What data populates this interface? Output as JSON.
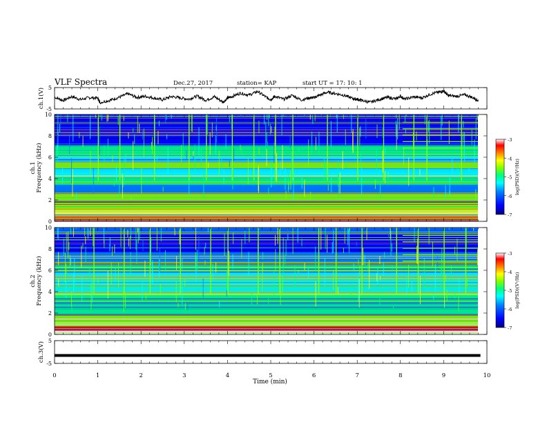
{
  "header": {
    "title": "VLF Spectra",
    "date": "Dec.27, 2017",
    "station": "station= KAP",
    "start": "start  UT =   17: 10: 1"
  },
  "colors": {
    "background": "#ffffff",
    "axes": "#000000",
    "waveform": "#000000",
    "colormap": [
      "#000080",
      "#0000ff",
      "#0080ff",
      "#00ffff",
      "#00ff80",
      "#80ff00",
      "#ffff00",
      "#ff8000",
      "#ff0000",
      "#ffffff"
    ]
  },
  "chart_data": [
    {
      "type": "line",
      "panel": "ch1-waveform",
      "ylabel": "ch.1(V)",
      "yticks": [
        "5",
        "-5"
      ],
      "ylim": [
        -5,
        5
      ],
      "xlim": [
        0,
        10
      ],
      "x": [
        0,
        0.2,
        0.4,
        0.6,
        0.8,
        1.0,
        1.05,
        1.3,
        1.5,
        1.7,
        1.9,
        2.1,
        2.3,
        2.5,
        2.7,
        2.9,
        3.1,
        3.3,
        3.5,
        3.7,
        3.9,
        4.0,
        4.1,
        4.3,
        4.5,
        4.7,
        4.9,
        5.0,
        5.1,
        5.3,
        5.5,
        5.7,
        5.9,
        6.0,
        6.1,
        6.3,
        6.5,
        6.7,
        6.9,
        7.0,
        7.1,
        7.3,
        7.5,
        7.7,
        7.9,
        8.0,
        8.1,
        8.3,
        8.5,
        8.7,
        8.9,
        9.0,
        9.1,
        9.3,
        9.5,
        9.7,
        9.8
      ],
      "y": [
        0.5,
        -1.0,
        0.8,
        -0.6,
        0.3,
        0.1,
        -2.0,
        -0.8,
        0.5,
        2.1,
        0.4,
        0.9,
        0.1,
        -0.7,
        0.8,
        0.2,
        -0.4,
        1.0,
        -0.9,
        0.7,
        -1.8,
        0.1,
        0.8,
        2.4,
        1.5,
        3.2,
        0.4,
        -0.6,
        0.9,
        -0.5,
        1.4,
        -0.8,
        0.2,
        0.3,
        1.2,
        2.8,
        2.2,
        1.4,
        -0.2,
        -0.5,
        -1.0,
        -1.9,
        -0.6,
        0.4,
        -0.3,
        1.0,
        -0.4,
        0.6,
        0.2,
        2.0,
        2.9,
        3.4,
        1.3,
        0.9,
        1.6,
        0.1,
        -1.2
      ]
    },
    {
      "type": "heatmap",
      "panel": "ch1-spectrogram",
      "ylabel": "ch.1\nFrequency (kHz)",
      "yticks": [
        "0",
        "2",
        "4",
        "6",
        "8",
        "10"
      ],
      "ylim": [
        0,
        10
      ],
      "xlim": [
        0,
        10
      ],
      "colorbar": {
        "label": "log(PSD)(V²/Hz)",
        "range": [
          -7,
          -3
        ],
        "ticks": [
          "-3",
          "-4",
          "-5",
          "-6",
          "-7"
        ]
      },
      "bands_khz": [
        {
          "f": 0.2,
          "level": -3.3
        },
        {
          "f": 0.5,
          "level": -3.8
        },
        {
          "f": 0.9,
          "level": -4.3
        },
        {
          "f": 1.2,
          "level": -4.6
        },
        {
          "f": 1.6,
          "level": -4.8
        },
        {
          "f": 2.0,
          "level": -4.7
        },
        {
          "f": 2.4,
          "level": -5.0
        },
        {
          "f": 3.0,
          "level": -6.2
        },
        {
          "f": 3.8,
          "level": -5.4
        },
        {
          "f": 4.6,
          "level": -5.6
        },
        {
          "f": 5.2,
          "level": -5.0
        },
        {
          "f": 5.8,
          "level": -5.6
        },
        {
          "f": 6.6,
          "level": -5.3
        },
        {
          "f": 7.4,
          "level": -6.6
        },
        {
          "f": 8.6,
          "level": -6.7
        },
        {
          "f": 9.6,
          "level": -6.4
        }
      ],
      "transients_min": [
        1.0,
        1.5,
        2.3,
        3.1,
        3.5,
        4.1,
        4.6,
        5.1,
        5.5,
        6.3,
        7.0,
        7.6,
        8.3,
        8.6,
        9.4
      ]
    },
    {
      "type": "heatmap",
      "panel": "ch2-spectrogram",
      "ylabel": "ch.2\nFrequency (kHz)",
      "yticks": [
        "0",
        "2",
        "4",
        "6",
        "8",
        "10"
      ],
      "ylim": [
        0,
        10
      ],
      "xlim": [
        0,
        10
      ],
      "colorbar": {
        "label": "log(PSD)(V²/Hz)",
        "range": [
          -7,
          -3
        ],
        "ticks": [
          "-3",
          "-4",
          "-5",
          "-6",
          "-7"
        ]
      },
      "bands_khz": [
        {
          "f": 0.2,
          "level": -3.2
        },
        {
          "f": 0.5,
          "level": -3.6
        },
        {
          "f": 1.0,
          "level": -4.6
        },
        {
          "f": 1.5,
          "level": -4.9
        },
        {
          "f": 2.1,
          "level": -5.1
        },
        {
          "f": 2.8,
          "level": -5.3
        },
        {
          "f": 3.4,
          "level": -5.2
        },
        {
          "f": 4.0,
          "level": -5.7
        },
        {
          "f": 4.8,
          "level": -5.5
        },
        {
          "f": 5.6,
          "level": -5.8
        },
        {
          "f": 6.4,
          "level": -5.2
        },
        {
          "f": 7.2,
          "level": -5.9
        },
        {
          "f": 8.2,
          "level": -6.5
        },
        {
          "f": 9.0,
          "level": -6.6
        },
        {
          "f": 9.7,
          "level": -6.3
        }
      ],
      "transients_min": [
        0.9,
        1.6,
        2.2,
        2.9,
        3.6,
        4.0,
        4.7,
        5.2,
        6.1,
        6.5,
        7.1,
        7.9,
        8.4,
        9.0,
        9.5
      ]
    },
    {
      "type": "line",
      "panel": "ch3-waveform",
      "ylabel": "ch.3(V)",
      "yticks": [
        "5",
        "-5"
      ],
      "ylim": [
        -5,
        5
      ],
      "xlim": [
        0,
        10
      ],
      "x": [
        0,
        9.85
      ],
      "y": [
        -1.5,
        -1.5
      ]
    }
  ],
  "xaxis": {
    "label": "Time (min)",
    "ticks": [
      "0",
      "1",
      "2",
      "3",
      "4",
      "5",
      "6",
      "7",
      "8",
      "9",
      "10"
    ]
  }
}
